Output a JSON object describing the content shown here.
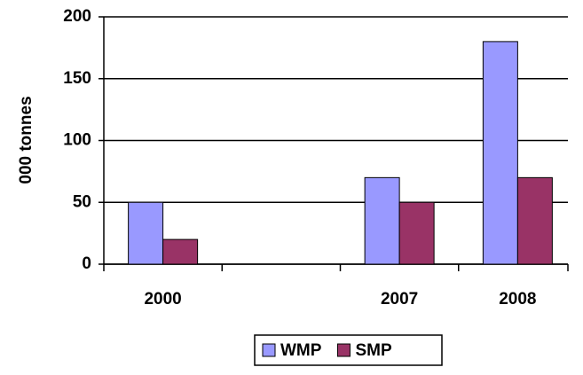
{
  "chart_data": {
    "type": "bar",
    "y_label": "000 tonnes",
    "categories": [
      "2000",
      null,
      "2007",
      "2008"
    ],
    "series": [
      {
        "name": "WMP",
        "color": "#9999ff",
        "values": [
          50,
          null,
          70,
          180
        ]
      },
      {
        "name": "SMP",
        "color": "#993366",
        "values": [
          20,
          null,
          50,
          70
        ]
      }
    ],
    "ylim": [
      0,
      200
    ],
    "yticks": [
      0,
      50,
      100,
      150,
      200
    ],
    "grid": true,
    "legend": "bottom"
  }
}
